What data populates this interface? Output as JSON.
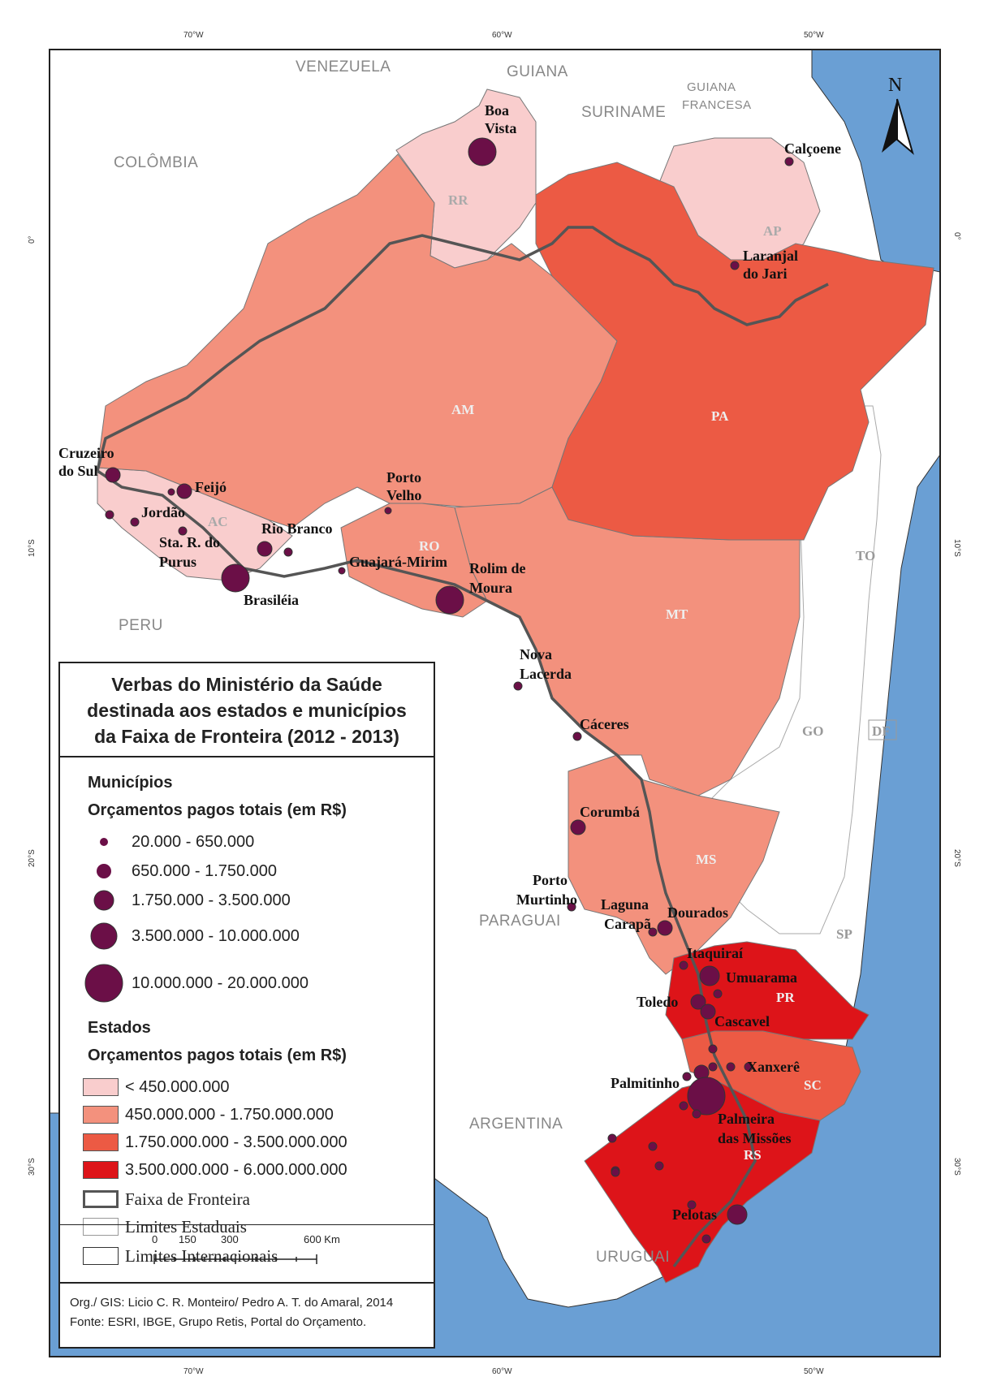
{
  "colors": {
    "ocean": "#6a9fd4",
    "land_other": "#ffffff",
    "class1": "#f9cdcd",
    "class2": "#f3917d",
    "class3": "#ec5a44",
    "class4": "#dd1419",
    "marker": "#6b0f47"
  },
  "graticule": {
    "top_longitudes": [
      "70°W",
      "60°W",
      "50°W"
    ],
    "bottom_longitudes": [
      "70°W",
      "60°W",
      "50°W"
    ],
    "latitudes": [
      "0°",
      "10°S",
      "20°S",
      "30°S"
    ]
  },
  "countries": [
    "VENEZUELA",
    "GUIANA",
    "SURINAME",
    "GUIANA FRANCESA",
    "COLÔMBIA",
    "PERU",
    "PARAGUAI",
    "ARGENTINA",
    "URUGUAI"
  ],
  "country_labels": {
    "venezuela": "VENEZUELA",
    "guiana": "GUIANA",
    "suriname": "SURINAME",
    "guiana_francesa_1": "GUIANA",
    "guiana_francesa_2": "FRANCESA",
    "colombia": "COLÔMBIA",
    "peru": "PERU",
    "paraguai": "PARAGUAI",
    "argentina": "ARGENTINA",
    "uruguai": "URUGUAI"
  },
  "states": [
    {
      "code": "RR",
      "class": 1
    },
    {
      "code": "AP",
      "class": 1
    },
    {
      "code": "AC",
      "class": 1
    },
    {
      "code": "AM",
      "class": 2
    },
    {
      "code": "RO",
      "class": 2
    },
    {
      "code": "MT",
      "class": 2
    },
    {
      "code": "MS",
      "class": 2
    },
    {
      "code": "PA",
      "class": 3
    },
    {
      "code": "SC",
      "class": 3
    },
    {
      "code": "PR",
      "class": 4
    },
    {
      "code": "RS",
      "class": 4
    },
    {
      "code": "TO",
      "class": 0
    },
    {
      "code": "GO",
      "class": 0
    },
    {
      "code": "DF",
      "class": 0
    },
    {
      "code": "SP",
      "class": 0
    }
  ],
  "cities": [
    "Boa Vista",
    "Calçoene",
    "Laranjal do Jari",
    "Cruzeiro do Sul",
    "Feijó",
    "Jordão",
    "Sta. R. do Purus",
    "Rio Branco",
    "Brasiléia",
    "Porto Velho",
    "Guajará-Mirim",
    "Rolim de Moura",
    "Nova Lacerda",
    "Cáceres",
    "Corumbá",
    "Porto Murtinho",
    "Laguna Carapã",
    "Dourados",
    "Itaquiraí",
    "Umuarama",
    "Toledo",
    "Cascavel",
    "Palmitinho",
    "Xanxerê",
    "Palmeira das Missões",
    "Pelotas"
  ],
  "city_labels": {
    "boa_vista_1": "Boa",
    "boa_vista_2": "Vista",
    "calcoene": "Calçoene",
    "laranjal_1": "Laranjal",
    "laranjal_2": "do Jari",
    "cruzeiro_1": "Cruzeiro",
    "cruzeiro_2": "do Sul",
    "feijo": "Feijó",
    "jordao": "Jordão",
    "purus_1": "Sta. R. do",
    "purus_2": "Purus",
    "rio_branco": "Rio Branco",
    "brasileia": "Brasiléia",
    "porto_velho_1": "Porto",
    "porto_velho_2": "Velho",
    "guajara": "Guajará-Mirim",
    "rolim_1": "Rolim de",
    "rolim_2": "Moura",
    "nova_lacerda_1": "Nova",
    "nova_lacerda_2": "Lacerda",
    "caceres": "Cáceres",
    "corumba": "Corumbá",
    "murtinho_1": "Porto",
    "murtinho_2": "Murtinho",
    "laguna_1": "Laguna",
    "laguna_2": "Carapã",
    "dourados": "Dourados",
    "itaquirai": "Itaquiraí",
    "umuarama": "Umuarama",
    "toledo": "Toledo",
    "cascavel": "Cascavel",
    "palmitinho": "Palmitinho",
    "xanxere": "Xanxerê",
    "palmeira_1": "Palmeira",
    "palmeira_2": "das Missões",
    "pelotas": "Pelotas"
  },
  "north_arrow": "N",
  "legend": {
    "title_line1": "Verbas do Ministério da Saúde",
    "title_line2": "destinada aos estados e municípios",
    "title_line3": "da Faixa de Fronteira (2012 - 2013)",
    "municipios_heading": "Municípios",
    "municipios_sub": "Orçamentos pagos totais (em R$)",
    "municipio_classes": [
      "20.000 - 650.000",
      "650.000 - 1.750.000",
      "1.750.000 - 3.500.000",
      "3.500.000 - 10.000.000",
      "10.000.000 - 20.000.000"
    ],
    "estados_heading": "Estados",
    "estados_sub": "Orçamentos pagos totais (em R$)",
    "estado_classes": [
      "< 450.000.000",
      "450.000.000 - 1.750.000.000",
      "1.750.000.000 - 3.500.000.000",
      "3.500.000.000 - 6.000.000.000"
    ],
    "line_items": [
      "Faixa de Fronteira",
      "Limites Estaduais",
      "Limites Internacionais"
    ],
    "scale_ticks": [
      "0",
      "150",
      "300",
      "600 Km"
    ],
    "credit_line1": "Org./ GIS: Licio C. R. Monteiro/ Pedro A. T. do Amaral, 2014",
    "credit_line2": "Fonte: ESRI, IBGE, Grupo Retis, Portal do Orçamento."
  }
}
